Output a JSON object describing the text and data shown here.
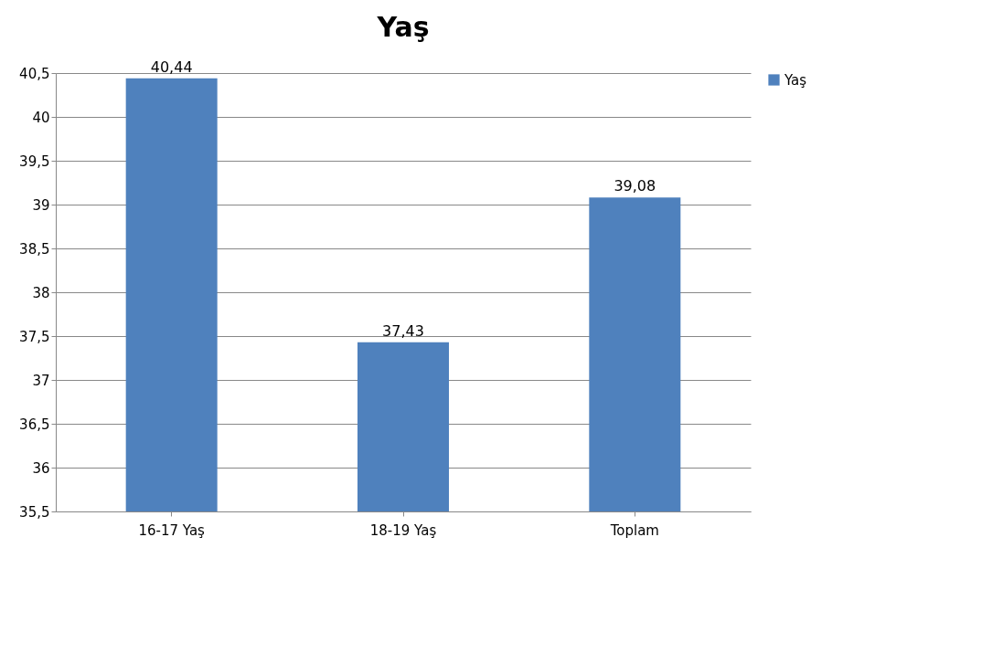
{
  "chart_data": {
    "type": "bar",
    "title": "Yaş",
    "categories": [
      "16-17 Yaş",
      "18-19 Yaş",
      "Toplam"
    ],
    "series": [
      {
        "name": "Yaş",
        "color": "#4f81bd",
        "values": [
          40.44,
          37.43,
          39.08
        ],
        "value_labels": [
          "40,44",
          "37,43",
          "39,08"
        ]
      }
    ],
    "ylim": [
      35.5,
      40.5
    ],
    "yticks": [
      {
        "value": 35.5,
        "label": "35,5"
      },
      36,
      {
        "value": 36.5,
        "label": "36,5"
      },
      37,
      {
        "value": 37.5,
        "label": "37,5"
      },
      38,
      {
        "value": 38.5,
        "label": "38,5"
      },
      39,
      {
        "value": 39.5,
        "label": "39,5"
      },
      40,
      {
        "value": 40.5,
        "label": "40,5"
      }
    ],
    "grid": "y",
    "legend": "right"
  }
}
